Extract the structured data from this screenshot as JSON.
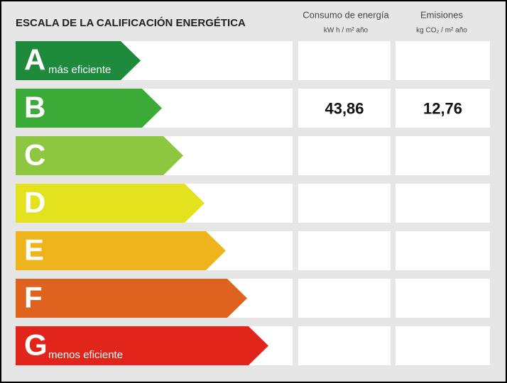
{
  "header": {
    "title": "ESCALA DE LA CALIFICACIÓN ENERGÉTICA",
    "columns": [
      {
        "title": "Consumo de energía",
        "unit": "kW h / m² año"
      },
      {
        "title": "Emisiones",
        "unit": "kg CO₂ / m² año"
      }
    ]
  },
  "rows": [
    {
      "letter": "A",
      "note": "más eficiente",
      "color": "#1d8b3b"
    },
    {
      "letter": "B",
      "color": "#3caa36",
      "values": [
        "43,86",
        "12,76"
      ]
    },
    {
      "letter": "C",
      "color": "#8dc63f"
    },
    {
      "letter": "D",
      "color": "#e3e21d"
    },
    {
      "letter": "E",
      "color": "#efb31b"
    },
    {
      "letter": "F",
      "color": "#e0621f"
    },
    {
      "letter": "G",
      "note": "menos eficiente",
      "color": "#e1251b"
    }
  ]
}
